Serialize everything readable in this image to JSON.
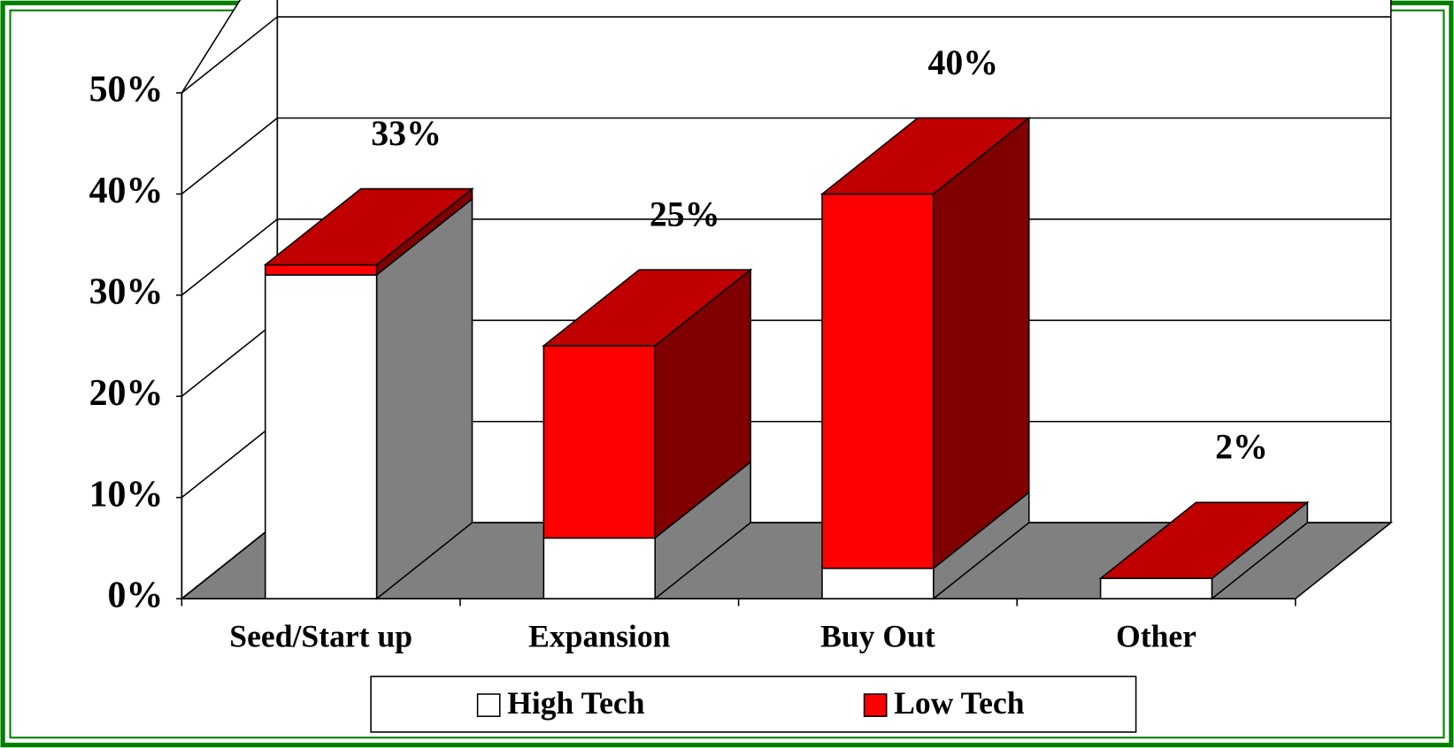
{
  "chart_data": {
    "type": "bar3d_stacked",
    "categories": [
      "Seed/Start up",
      "Expansion",
      "Buy Out",
      "Other"
    ],
    "series": [
      {
        "name": "High Tech",
        "color": "#ffffff",
        "side_color": "#808080",
        "values": [
          32,
          6,
          3,
          2
        ]
      },
      {
        "name": "Low Tech",
        "color": "#ff0000",
        "side_color": "#800000",
        "top_color": "#c00000",
        "values": [
          1,
          19,
          37,
          0
        ]
      }
    ],
    "totals": [
      33,
      25,
      40,
      2
    ],
    "total_labels": [
      "33%",
      "25%",
      "40%",
      "2%"
    ],
    "ylim": [
      0,
      50
    ],
    "yticks": [
      {
        "value": 0,
        "label": "0%"
      },
      {
        "value": 10,
        "label": "10%"
      },
      {
        "value": 20,
        "label": "20%"
      },
      {
        "value": 30,
        "label": "30%"
      },
      {
        "value": 40,
        "label": "40%"
      },
      {
        "value": 50,
        "label": "50%"
      }
    ],
    "grid": true,
    "legend": "bottom"
  }
}
